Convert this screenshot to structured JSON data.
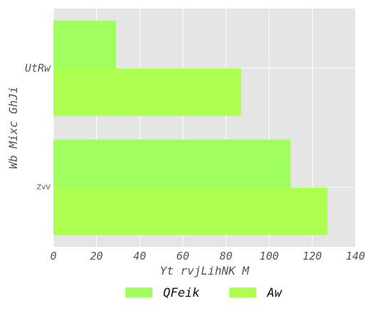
{
  "chart_data": {
    "type": "bar",
    "orientation": "horizontal",
    "categories": [
      "UtRw",
      "ZvV"
    ],
    "series": [
      {
        "name": "QFeik",
        "values": [
          29,
          110
        ],
        "color": "#9eff5e"
      },
      {
        "name": "Aw",
        "values": [
          87,
          127
        ],
        "color": "#acff4f"
      }
    ],
    "xlabel": "Yt  rvjLihNK M",
    "ylabel": "Wb Mixc  GhJi",
    "xlim": [
      0,
      140
    ],
    "xticks": [
      "0",
      "20",
      "40",
      "60",
      "80",
      "100",
      "120",
      "140"
    ],
    "grid": true,
    "legend_position": "bottom",
    "colors": {
      "plot_bg": "#e5e5e5",
      "grid": "#ffffff"
    }
  }
}
